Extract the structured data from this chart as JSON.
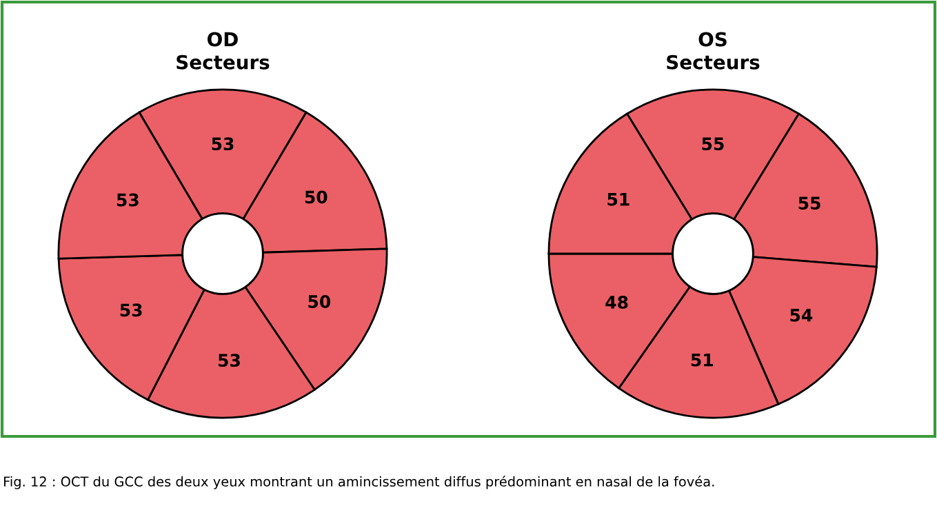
{
  "chart_data": [
    {
      "type": "donut",
      "title": "OD\nSecteurs",
      "categories": [
        null,
        null,
        null,
        null,
        null,
        null
      ],
      "values": [
        53,
        50,
        50,
        53,
        53,
        53
      ],
      "colors": [
        "#ea6066",
        "#ea6066",
        "#ea6066",
        "#ea6066",
        "#ea6066",
        "#ea6066"
      ],
      "data_labels": true,
      "annotations": [
        "Fig. 12 : OCT du GCC des deux yeux montrant un amincissement diffus prédominant en nasal de la fovéa."
      ]
    },
    {
      "type": "donut",
      "title": "OS\nSecteurs",
      "categories": [
        null,
        null,
        null,
        null,
        null,
        null
      ],
      "values": [
        55,
        55,
        54,
        51,
        48,
        51
      ],
      "colors": [
        "#ea6066",
        "#ea6066",
        "#ea6066",
        "#ea6066",
        "#ea6066",
        "#ea6066"
      ],
      "data_labels": true
    }
  ]
}
